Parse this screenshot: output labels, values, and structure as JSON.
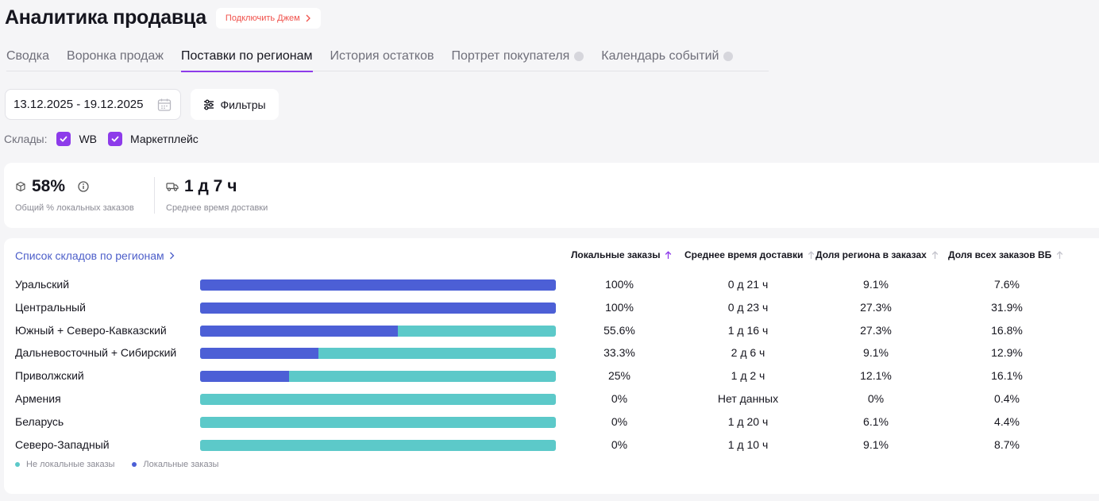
{
  "header": {
    "title": "Аналитика продавца",
    "jam_button": "Подключить Джем"
  },
  "tabs": [
    {
      "label": "Сводка"
    },
    {
      "label": "Воронка продаж"
    },
    {
      "label": "Поставки по регионам"
    },
    {
      "label": "История остатков"
    },
    {
      "label": "Портрет покупателя"
    },
    {
      "label": "Календарь событий"
    }
  ],
  "filters": {
    "date_range": "13.12.2025 - 19.12.2025",
    "filters_label": "Фильтры",
    "warehouses_label": "Склады:",
    "warehouses": [
      {
        "label": "WB",
        "checked": true
      },
      {
        "label": "Маркетплейс",
        "checked": true
      }
    ]
  },
  "summary": {
    "local_share_value": "58%",
    "local_share_label": "Общий % локальных заказов",
    "delivery_value": "1 д 7 ч",
    "delivery_label": "Среднее время доставки"
  },
  "regions": {
    "link": "Список складов по регионам",
    "columns": [
      "Локальные заказы",
      "Среднее время доставки",
      "Доля региона в заказах",
      "Доля всех заказов ВБ"
    ],
    "rows": [
      {
        "name": "Уральский",
        "local": "100%",
        "local_share": 1.0,
        "delivery": "0 д 21 ч",
        "region_share": "9.1%",
        "wb_share": "7.6%"
      },
      {
        "name": "Центральный",
        "local": "100%",
        "local_share": 1.0,
        "delivery": "0 д 23 ч",
        "region_share": "27.3%",
        "wb_share": "31.9%"
      },
      {
        "name": "Южный + Северо-Кавказский",
        "local": "55.6%",
        "local_share": 0.556,
        "delivery": "1 д 16 ч",
        "region_share": "27.3%",
        "wb_share": "16.8%"
      },
      {
        "name": "Дальневосточный + Сибирский",
        "local": "33.3%",
        "local_share": 0.333,
        "delivery": "2 д 6 ч",
        "region_share": "9.1%",
        "wb_share": "12.9%"
      },
      {
        "name": "Приволжский",
        "local": "25%",
        "local_share": 0.25,
        "delivery": "1 д 2 ч",
        "region_share": "12.1%",
        "wb_share": "16.1%"
      },
      {
        "name": "Армения",
        "local": "0%",
        "local_share": 0.0,
        "delivery": "Нет данных",
        "region_share": "0%",
        "wb_share": "0.4%"
      },
      {
        "name": "Беларусь",
        "local": "0%",
        "local_share": 0.0,
        "delivery": "1 д 20 ч",
        "region_share": "6.1%",
        "wb_share": "4.4%"
      },
      {
        "name": "Северо-Западный",
        "local": "0%",
        "local_share": 0.0,
        "delivery": "1 д 10 ч",
        "region_share": "9.1%",
        "wb_share": "8.7%"
      }
    ],
    "legend": [
      {
        "label": "Не локальные заказы",
        "color": "#5cc9c9"
      },
      {
        "label": "Локальные заказы",
        "color": "#4c5fd6"
      }
    ]
  },
  "colors": {
    "accent": "#8d3bea",
    "local": "#4c5fd6",
    "non_local": "#5cc9c9",
    "jam": "#f0504a"
  }
}
